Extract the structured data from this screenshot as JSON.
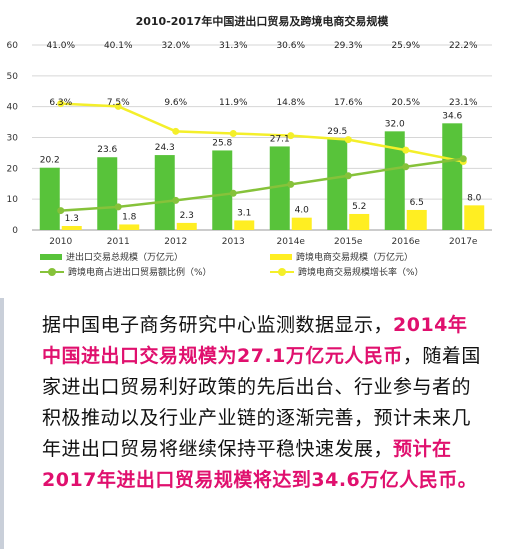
{
  "colors": {
    "bar_total": "#58c33a",
    "bar_cross": "#ffee22",
    "line_share": "#86c23a",
    "line_growth": "#f4ef2a",
    "highlight": "#e0106e",
    "grid": "#d6d6d6"
  },
  "chart_data": {
    "type": "bar",
    "title": "2010-2017年中国进出口贸易及跨境电商交易规模",
    "categories": [
      "2010",
      "2011",
      "2012",
      "2013",
      "2014e",
      "2015e",
      "2016e",
      "2017e"
    ],
    "ylim": [
      0,
      60
    ],
    "yticks": [
      0,
      10,
      20,
      30,
      40,
      50,
      60
    ],
    "grid": true,
    "legend_position": "bottom",
    "series": [
      {
        "name": "进出口交易总规模（万亿元）",
        "kind": "bar",
        "values": [
          20.2,
          23.6,
          24.3,
          25.8,
          27.1,
          29.5,
          32.0,
          34.6
        ],
        "labels": [
          "20.2",
          "23.6",
          "24.3",
          "25.8",
          "27.1",
          "29.5",
          "32.0",
          "34.6"
        ]
      },
      {
        "name": "跨境电商交易规模（万亿元）",
        "kind": "bar",
        "values": [
          1.3,
          1.8,
          2.3,
          3.1,
          4.0,
          5.2,
          6.5,
          8.0
        ],
        "labels": [
          "1.3",
          "1.8",
          "2.3",
          "3.1",
          "4.0",
          "5.2",
          "6.5",
          "8.0"
        ]
      },
      {
        "name": "跨境电商占进出口贸易额比例（%）",
        "kind": "line",
        "values": [
          6.3,
          7.5,
          9.6,
          11.9,
          14.8,
          17.6,
          20.5,
          23.1
        ],
        "labels": [
          "6.3%",
          "7.5%",
          "9.6%",
          "11.9%",
          "14.8%",
          "17.6%",
          "20.5%",
          "23.1%"
        ]
      },
      {
        "name": "跨境电商交易规模增长率（%）",
        "kind": "line",
        "values": [
          41.0,
          40.1,
          32.0,
          31.3,
          30.6,
          29.3,
          25.9,
          22.2
        ],
        "labels": [
          "41.0%",
          "40.1%",
          "32.0%",
          "31.3%",
          "30.6%",
          "29.3%",
          "25.9%",
          "22.2%"
        ]
      }
    ]
  },
  "text": {
    "part1": "据中国电子商务研究中心监测数据显示，",
    "highlight1": "2014年中国进出口交易规模为27.1万亿元人民币",
    "part2": "，随着国家进出口贸易利好政策的先后出台、行业参与者的积极推动以及行业产业链的逐渐完善，预计未来几年进出口贸易将继续保持平稳快速发展，",
    "highlight2": "预计在2017年进出口贸易规模将达到34.6万亿人民币。"
  }
}
